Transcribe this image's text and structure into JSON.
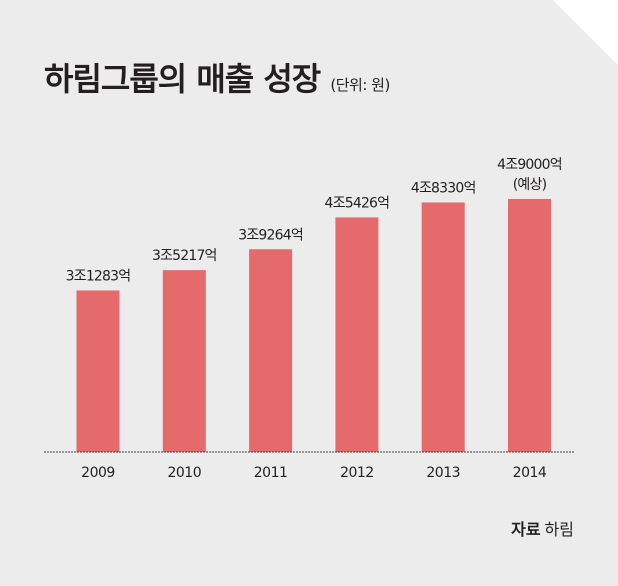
{
  "colors": {
    "background": "#ececec",
    "bar": "#e56a6b",
    "text": "#231f20",
    "baseline": "#3a3a3a"
  },
  "header": {
    "title": "하림그룹의 매출 성장",
    "unit": "(단위: 원)"
  },
  "source": {
    "label": "자료",
    "value": "하림"
  },
  "chart_data": {
    "type": "bar",
    "title": "하림그룹의 매출 성장",
    "unit": "(단위: 원)",
    "categories": [
      "2009",
      "2010",
      "2011",
      "2012",
      "2013",
      "2014"
    ],
    "values": [
      31283,
      35217,
      39264,
      45426,
      48330,
      49000
    ],
    "value_unit": "억 원",
    "data_labels": [
      [
        "3조1283억"
      ],
      [
        "3조5217억"
      ],
      [
        "3조9264억"
      ],
      [
        "4조5426억"
      ],
      [
        "4조8330억"
      ],
      [
        "4조9000억",
        "(예상)"
      ]
    ],
    "ylim": [
      0,
      55000
    ],
    "grid": false,
    "legend": "none"
  }
}
